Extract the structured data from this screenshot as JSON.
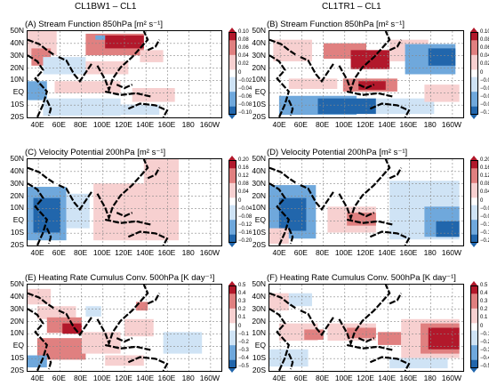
{
  "columns": [
    "CL1BW1 – CL1",
    "CL1TR1 – CL1"
  ],
  "latitudes": [
    "50N",
    "40N",
    "30N",
    "20N",
    "10N",
    "EQ",
    "10S",
    "20S"
  ],
  "longitudes": [
    "40E",
    "60E",
    "80E",
    "100E",
    "120E",
    "140E",
    "160E",
    "180",
    "160W"
  ],
  "rows": [
    {
      "titles": [
        "(A) Stream Function 850hPa [m² s⁻¹]",
        "(B) Stream Function 850hPa [m² s⁻¹]"
      ],
      "colorbar": [
        "0.10",
        "0.08",
        "0.06",
        "0.04",
        "0.02",
        "0",
        "−0.02",
        "−0.04",
        "−0.06",
        "−0.08",
        "−0.10"
      ]
    },
    {
      "titles": [
        "(C) Velocity Potential 200hPa [m² s⁻¹]",
        "(D) Velocity Potential 200hPa [m² s⁻¹]"
      ],
      "colorbar": [
        "0.20",
        "0.16",
        "0.12",
        "0.08",
        "0.04",
        "0",
        "−0.04",
        "−0.08",
        "−0.12",
        "−0.16",
        "−0.20"
      ]
    },
    {
      "titles": [
        "(E) Heating Rate Cumulus Conv. 500hPa [K day⁻¹]",
        "(F) Heating Rate Cumulus Conv. 500hPa [K day⁻¹]"
      ],
      "colorbar": [
        "0.5",
        "0.4",
        "0.3",
        "0.2",
        "0.1",
        "0",
        "−0.1",
        "−0.2",
        "−0.3",
        "−0.4",
        "−0.5"
      ]
    }
  ],
  "colors": {
    "red_strong": "#b2182b",
    "red_mid": "#e08080",
    "red_light": "#f7d0d0",
    "blue_strong": "#2166ac",
    "blue_mid": "#6fa8dc",
    "blue_light": "#cfe3f5"
  }
}
